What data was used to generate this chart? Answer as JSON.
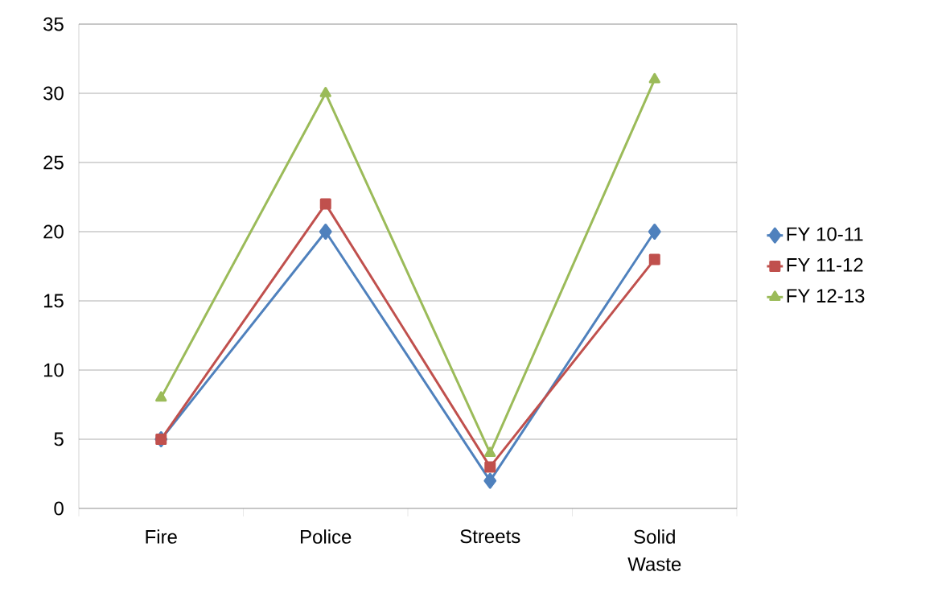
{
  "chart_data": {
    "type": "line",
    "categories": [
      "Fire",
      "Police",
      "Streets",
      "Solid Waste"
    ],
    "series": [
      {
        "name": "FY 10-11",
        "color": "#4f81bd",
        "marker": "diamond",
        "values": [
          5,
          20,
          2,
          20
        ]
      },
      {
        "name": "FY 11-12",
        "color": "#c0504d",
        "marker": "square",
        "values": [
          5,
          22,
          3,
          18
        ]
      },
      {
        "name": "FY 12-13",
        "color": "#9bbb59",
        "marker": "triangle",
        "values": [
          8,
          30,
          4,
          31
        ]
      }
    ],
    "ylim": [
      0,
      35
    ],
    "yticks": [
      0,
      5,
      10,
      15,
      20,
      25,
      30,
      35
    ],
    "grid": "y",
    "legend": "right"
  }
}
